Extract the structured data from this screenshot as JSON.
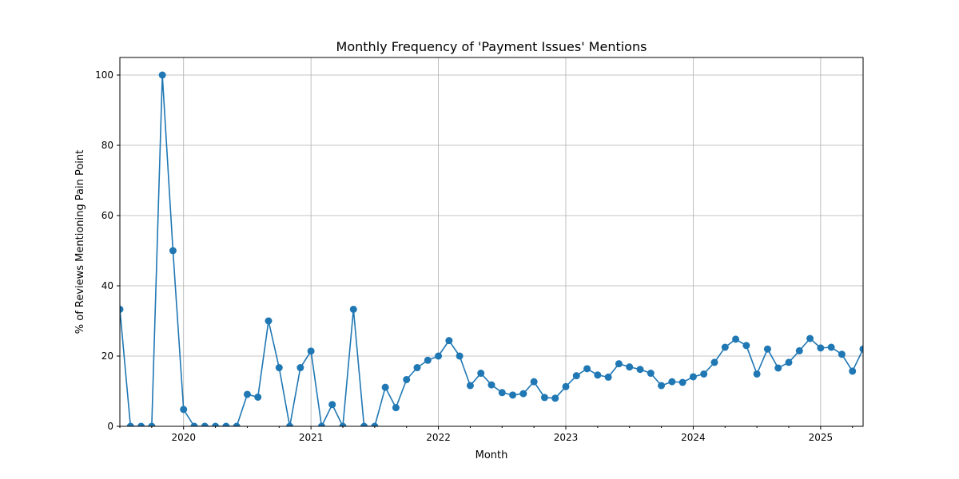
{
  "chart_data": {
    "type": "line",
    "title": "Monthly Frequency of 'Payment Issues' Mentions",
    "xlabel": "Month",
    "ylabel": "% of Reviews Mentioning Pain Point",
    "ylim": [
      0,
      105
    ],
    "xlim": [
      "2019-07",
      "2025-05"
    ],
    "y_ticks": [
      0,
      20,
      40,
      60,
      80,
      100
    ],
    "x_ticks": [
      "2020",
      "2021",
      "2022",
      "2023",
      "2024",
      "2025"
    ],
    "grid": true,
    "color": "#1f77b4",
    "series": [
      {
        "x": [
          "2019-07",
          "2019-08",
          "2019-09",
          "2019-10",
          "2019-11",
          "2019-12",
          "2020-01",
          "2020-02",
          "2020-03",
          "2020-04",
          "2020-05",
          "2020-06",
          "2020-07",
          "2020-08",
          "2020-09",
          "2020-10",
          "2020-11",
          "2020-12",
          "2021-01",
          "2021-02",
          "2021-03",
          "2021-04",
          "2021-05",
          "2021-06",
          "2021-07",
          "2021-08",
          "2021-09",
          "2021-10",
          "2021-11",
          "2021-12",
          "2022-01",
          "2022-02",
          "2022-03",
          "2022-04",
          "2022-05",
          "2022-06",
          "2022-07",
          "2022-08",
          "2022-09",
          "2022-10",
          "2022-11",
          "2022-12",
          "2023-01",
          "2023-02",
          "2023-03",
          "2023-04",
          "2023-05",
          "2023-06",
          "2023-07",
          "2023-08",
          "2023-09",
          "2023-10",
          "2023-11",
          "2023-12",
          "2024-01",
          "2024-02",
          "2024-03",
          "2024-04",
          "2024-05",
          "2024-06",
          "2024-07",
          "2024-08",
          "2024-09",
          "2024-10",
          "2024-11",
          "2024-12",
          "2025-01",
          "2025-02",
          "2025-03",
          "2025-04",
          "2025-05"
        ],
        "values": [
          33.3,
          0,
          0,
          0,
          100,
          50,
          4.8,
          0,
          0,
          0,
          0,
          0,
          9.1,
          8.3,
          30,
          16.7,
          0,
          16.7,
          21.4,
          0,
          6.2,
          0,
          33.3,
          0,
          0,
          11.1,
          5.3,
          13.3,
          16.7,
          18.8,
          20,
          24.4,
          20,
          11.6,
          15.1,
          11.8,
          9.6,
          8.9,
          9.3,
          12.7,
          8.2,
          8,
          11.3,
          14.4,
          16.4,
          14.6,
          14,
          17.8,
          16.9,
          16.2,
          15.1,
          11.6,
          12.7,
          12.5,
          14.1,
          14.9,
          18.2,
          22.5,
          24.8,
          23,
          14.9,
          22,
          16.6,
          18.2,
          21.5,
          25,
          22.3,
          22.5,
          20.5,
          15.7,
          22
        ]
      }
    ]
  }
}
